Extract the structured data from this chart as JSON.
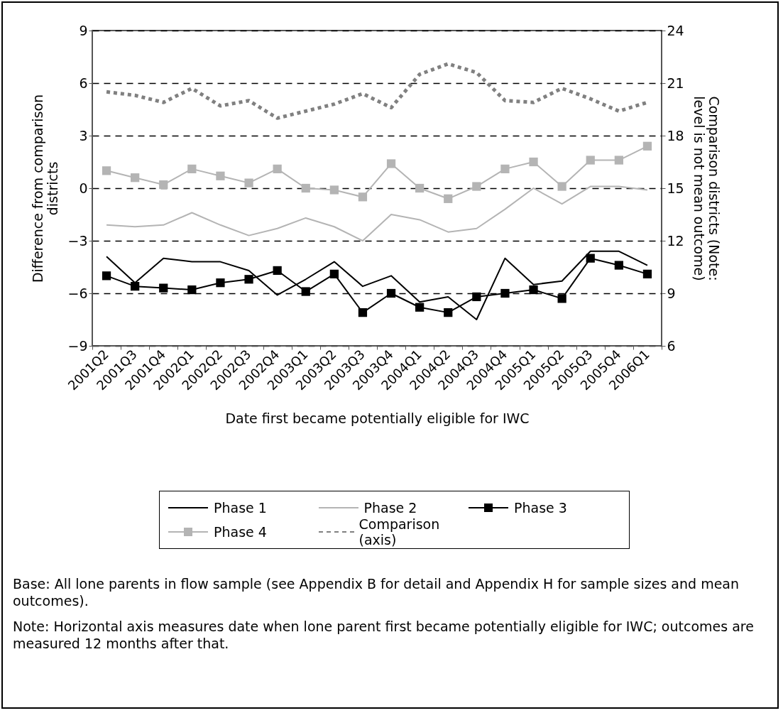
{
  "chart_data": {
    "type": "line",
    "xlabel": "Date first became potentially eligible for IWC",
    "ylabel": "Difference from comparison districts",
    "y2label": "Comparison districts (Note: level is not mean outcome)",
    "categories": [
      "2001Q2",
      "2001Q3",
      "2001Q4",
      "2002Q1",
      "2002Q2",
      "2002Q3",
      "2002Q4",
      "2003Q1",
      "2003Q2",
      "2003Q3",
      "2003Q4",
      "2004Q1",
      "2004Q2",
      "2004Q3",
      "2004Q4",
      "2005Q1",
      "2005Q2",
      "2005Q3",
      "2005Q4",
      "2006Q1"
    ],
    "series": [
      {
        "name": "Phase 1",
        "color": "#000000",
        "marker": "none",
        "line_style": "solid",
        "values": [
          -3.9,
          -5.4,
          -4.0,
          -4.2,
          -4.2,
          -4.7,
          -6.1,
          -5.2,
          -4.2,
          -5.6,
          -5.0,
          -6.5,
          -6.2,
          -7.5,
          -4.0,
          -5.5,
          -5.3,
          -3.6,
          -3.6,
          -4.4
        ]
      },
      {
        "name": "Phase 2",
        "color": "#b4b4b4",
        "marker": "none",
        "line_style": "solid",
        "values": [
          -2.1,
          -2.2,
          -2.1,
          -1.4,
          -2.1,
          -2.7,
          -2.3,
          -1.7,
          -2.2,
          -3.0,
          -1.5,
          -1.8,
          -2.5,
          -2.3,
          -1.2,
          0.0,
          -0.9,
          0.1,
          0.1,
          -0.1
        ]
      },
      {
        "name": "Phase 3",
        "color": "#000000",
        "marker": "square",
        "line_style": "solid",
        "values": [
          -5.0,
          -5.6,
          -5.7,
          -5.8,
          -5.4,
          -5.2,
          -4.7,
          -5.9,
          -4.9,
          -7.1,
          -6.0,
          -6.8,
          -7.1,
          -6.2,
          -6.0,
          -5.8,
          -6.3,
          -4.0,
          -4.4,
          -4.9
        ]
      },
      {
        "name": "Phase 4",
        "color": "#b4b4b4",
        "marker": "square",
        "line_style": "solid",
        "values": [
          1.0,
          0.6,
          0.2,
          1.1,
          0.7,
          0.3,
          1.1,
          0.0,
          -0.1,
          -0.5,
          1.4,
          0.0,
          -0.6,
          0.1,
          1.1,
          1.5,
          0.1,
          1.6,
          1.6,
          2.4
        ]
      },
      {
        "name": "Comparison (axis)",
        "color": "#808080",
        "marker": "none",
        "line_style": "dotted",
        "axis": "y2",
        "values": [
          20.5,
          20.3,
          19.9,
          20.7,
          19.7,
          20.0,
          19.0,
          19.4,
          19.8,
          20.4,
          19.6,
          21.5,
          22.1,
          21.6,
          20.0,
          19.9,
          20.7,
          20.1,
          19.4,
          19.9
        ]
      }
    ],
    "ylim": [
      -9,
      9
    ],
    "yticks": [
      -9,
      -6,
      -3,
      0,
      3,
      6,
      9
    ],
    "y2lim": [
      6,
      24
    ],
    "y2ticks": [
      6,
      9,
      12,
      15,
      18,
      21,
      24
    ],
    "grid": "y",
    "legend": "bottom",
    "annotations": [
      "Base: All lone parents in flow sample (see Appendix B for detail and Appendix H for sample sizes and mean outcomes).",
      "Note: Horizontal axis measures date when lone parent first became potentially eligible for IWC; outcomes are measured 12 months after that."
    ]
  }
}
